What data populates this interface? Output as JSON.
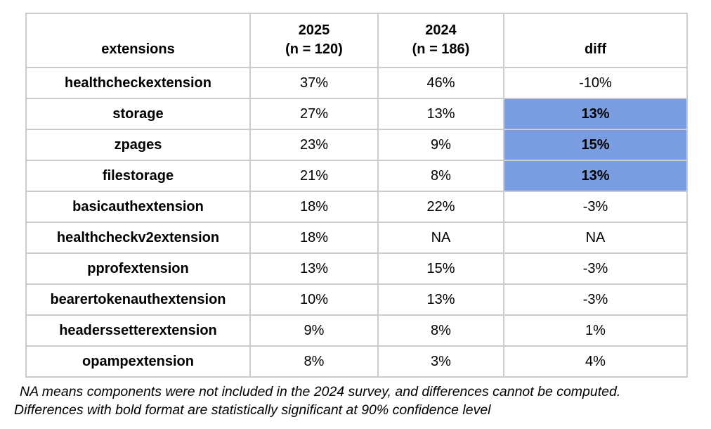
{
  "table": {
    "headers": {
      "extensions": "extensions",
      "col2025_line1": "2025",
      "col2025_line2": "(n = 120)",
      "col2024_line1": "2024",
      "col2024_line2": "(n = 186)",
      "diff": "diff"
    },
    "rows": [
      {
        "extension": "healthcheckextension",
        "y2025": "37%",
        "y2024": "46%",
        "diff": "-10%",
        "highlight": false
      },
      {
        "extension": "storage",
        "y2025": "27%",
        "y2024": "13%",
        "diff": "13%",
        "highlight": true
      },
      {
        "extension": "zpages",
        "y2025": "23%",
        "y2024": "9%",
        "diff": "15%",
        "highlight": true
      },
      {
        "extension": "filestorage",
        "y2025": "21%",
        "y2024": "8%",
        "diff": "13%",
        "highlight": true
      },
      {
        "extension": "basicauthextension",
        "y2025": "18%",
        "y2024": "22%",
        "diff": "-3%",
        "highlight": false
      },
      {
        "extension": "healthcheckv2extension",
        "y2025": "18%",
        "y2024": "NA",
        "diff": "NA",
        "highlight": false
      },
      {
        "extension": "pprofextension",
        "y2025": "13%",
        "y2024": "15%",
        "diff": "-3%",
        "highlight": false
      },
      {
        "extension": "bearertokenauthextension",
        "y2025": "10%",
        "y2024": "13%",
        "diff": "-3%",
        "highlight": false
      },
      {
        "extension": "headerssetterextension",
        "y2025": "9%",
        "y2024": "8%",
        "diff": "1%",
        "highlight": false
      },
      {
        "extension": "opampextension",
        "y2025": "8%",
        "y2024": "3%",
        "diff": "4%",
        "highlight": false
      }
    ]
  },
  "footnotes": {
    "line1": "NA means components were not included in the 2024 survey, and differences cannot be computed.",
    "line2": "Differences with bold format are statistically significant at 90% confidence level"
  },
  "colors": {
    "highlight": "#7a9de2",
    "border": "#cccccc"
  },
  "chart_data": {
    "type": "table",
    "title": "",
    "columns": [
      "extensions",
      "2025 (n = 120)",
      "2024 (n = 186)",
      "diff"
    ],
    "rows": [
      [
        "healthcheckextension",
        "37%",
        "46%",
        "-10%"
      ],
      [
        "storage",
        "27%",
        "13%",
        "13%"
      ],
      [
        "zpages",
        "23%",
        "9%",
        "15%"
      ],
      [
        "filestorage",
        "21%",
        "8%",
        "13%"
      ],
      [
        "basicauthextension",
        "18%",
        "22%",
        "-3%"
      ],
      [
        "healthcheckv2extension",
        "18%",
        "NA",
        "NA"
      ],
      [
        "pprofextension",
        "13%",
        "15%",
        "-3%"
      ],
      [
        "bearertokenauthextension",
        "10%",
        "13%",
        "-3%"
      ],
      [
        "headerssetterextension",
        "9%",
        "8%",
        "1%"
      ],
      [
        "opampextension",
        "8%",
        "3%",
        "4%"
      ]
    ],
    "highlighted_diff_rows": [
      "storage",
      "zpages",
      "filestorage"
    ],
    "highlight_meaning": "statistically significant at 90% confidence level",
    "notes": [
      "NA means components were not included in the 2024 survey, and differences cannot be computed.",
      "Differences with bold format are statistically significant at 90% confidence level"
    ]
  }
}
